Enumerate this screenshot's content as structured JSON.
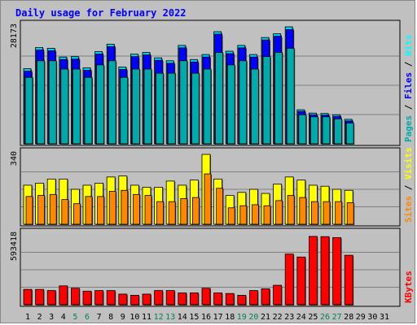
{
  "chart_data": {
    "type": "bar",
    "title": "Daily usage for February 2022",
    "days": [
      "1",
      "2",
      "3",
      "4",
      "5",
      "6",
      "7",
      "8",
      "9",
      "10",
      "11",
      "12",
      "13",
      "14",
      "15",
      "16",
      "17",
      "18",
      "19",
      "20",
      "21",
      "22",
      "23",
      "24",
      "25",
      "26",
      "27",
      "28",
      "29",
      "30",
      "31"
    ],
    "weekend_days": [
      "5",
      "6",
      "12",
      "13",
      "19",
      "20",
      "26",
      "27"
    ],
    "colors": {
      "title": "#0000ff",
      "hits": "#00ffff",
      "files": "#0000ff",
      "pages": "#00aaaa",
      "visits": "#ffff00",
      "sites": "#ff8800",
      "kbytes": "#ff0000",
      "weekend_label": "#00805c",
      "weekday_label": "#000000"
    },
    "panels": [
      {
        "name": "hits",
        "max_label": "28173",
        "ymax": 28173,
        "side_labels": [
          "Pages",
          "Files",
          "Hits"
        ],
        "series": [
          {
            "name": "Hits",
            "color": "#00d0f0",
            "values": [
              18100,
              23200,
              23000,
              20900,
              21000,
              18300,
              22200,
              24000,
              18500,
              21600,
              22000,
              20700,
              20000,
              23700,
              20300,
              21500,
              27000,
              22300,
              23700,
              21500,
              25600,
              26500,
              28173,
              8200,
              7400,
              7300,
              7000,
              5900,
              0,
              0,
              0
            ]
          },
          {
            "name": "Files",
            "color": "#0000ff",
            "values": [
              17500,
              22600,
              22400,
              20300,
              20400,
              17700,
              21600,
              23400,
              17900,
              21000,
              21400,
              20100,
              19400,
              23100,
              19700,
              20900,
              26400,
              21700,
              23100,
              20900,
              25000,
              25900,
              27500,
              7800,
              7000,
              6900,
              6600,
              5500,
              0,
              0,
              0
            ]
          },
          {
            "name": "Pages",
            "color": "#00aaaa",
            "values": [
              16000,
              20000,
              20000,
              18000,
              18000,
              16000,
              19000,
              20000,
              16000,
              18000,
              18000,
              17000,
              17000,
              20000,
              17000,
              18000,
              22000,
              19000,
              20000,
              18000,
              21000,
              22000,
              23000,
              7000,
              6500,
              6500,
              6000,
              5000,
              0,
              0,
              0
            ]
          }
        ]
      },
      {
        "name": "visits",
        "max_label": "340",
        "ymax": 340,
        "side_labels": [
          "Sites",
          "Visits"
        ],
        "series": [
          {
            "name": "Visits",
            "color": "#ffff00",
            "values": [
              190,
              200,
              220,
              220,
              170,
              190,
              200,
              230,
              235,
              190,
              180,
              180,
              210,
              190,
              215,
              340,
              220,
              140,
              155,
              170,
              150,
              195,
              230,
              215,
              190,
              185,
              170,
              165,
              0,
              0,
              0
            ]
          },
          {
            "name": "Sites",
            "color": "#ff8800",
            "values": [
              135,
              140,
              145,
              120,
              100,
              135,
              135,
              160,
              165,
              145,
              140,
              110,
              110,
              125,
              130,
              245,
              175,
              80,
              90,
              95,
              90,
              115,
              140,
              130,
              110,
              110,
              110,
              105,
              0,
              0,
              0
            ]
          }
        ]
      },
      {
        "name": "kbytes",
        "max_label": "593418",
        "ymax": 593418,
        "side_labels": [
          "KBytes"
        ],
        "series": [
          {
            "name": "KBytes",
            "color": "#ff0000",
            "values": [
              130000,
              130000,
              120000,
              160000,
              140000,
              115000,
              120000,
              120000,
              90000,
              80000,
              90000,
              120000,
              120000,
              100000,
              100000,
              140000,
              100000,
              95000,
              80000,
              120000,
              135000,
              165000,
              430000,
              405000,
              580000,
              578000,
              570000,
              420000,
              0,
              0,
              0
            ]
          }
        ]
      }
    ]
  }
}
